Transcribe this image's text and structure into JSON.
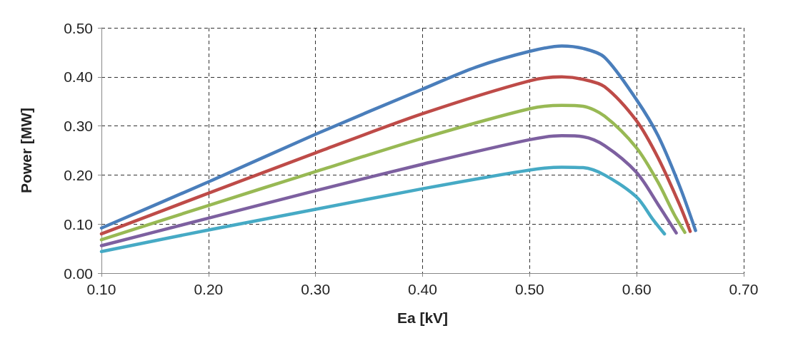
{
  "chart_data": {
    "type": "line",
    "xlabel": "Ea [kV]",
    "ylabel": "Power [MW]",
    "xlim": [
      0.1,
      0.7
    ],
    "xticks": [
      {
        "value": 0.1,
        "label": "0.10"
      },
      {
        "value": 0.2,
        "label": "0.20"
      },
      {
        "value": 0.3,
        "label": "0.30"
      },
      {
        "value": 0.4,
        "label": "0.40"
      },
      {
        "value": 0.5,
        "label": "0.50"
      },
      {
        "value": 0.6,
        "label": "0.60"
      },
      {
        "value": 0.7,
        "label": "0.70"
      }
    ],
    "ylim": [
      0,
      0.5
    ],
    "yticks": [
      {
        "value": 0,
        "label": "0.00"
      },
      {
        "value": 0.1,
        "label": "0.10"
      },
      {
        "value": 0.2,
        "label": "0.20"
      },
      {
        "value": 0.3,
        "label": "0.30"
      },
      {
        "value": 0.4,
        "label": "0.40"
      },
      {
        "value": 0.5,
        "label": "0.50"
      }
    ],
    "grid": true,
    "marker": "none",
    "line_style": "solid",
    "series": [
      {
        "color": "#4a7ebb",
        "x": [
          0.1,
          0.2,
          0.3,
          0.4,
          0.45,
          0.5,
          0.53,
          0.55,
          0.57,
          0.6,
          0.62,
          0.64,
          0.655
        ],
        "values": [
          0.092,
          0.186,
          0.283,
          0.375,
          0.42,
          0.452,
          0.463,
          0.458,
          0.44,
          0.353,
          0.28,
          0.178,
          0.087
        ]
      },
      {
        "color": "#be4b48",
        "x": [
          0.1,
          0.2,
          0.3,
          0.4,
          0.5,
          0.53,
          0.55,
          0.57,
          0.6,
          0.62,
          0.64,
          0.65
        ],
        "values": [
          0.08,
          0.163,
          0.245,
          0.325,
          0.392,
          0.4,
          0.395,
          0.38,
          0.31,
          0.235,
          0.14,
          0.085
        ]
      },
      {
        "color": "#98b954",
        "x": [
          0.1,
          0.2,
          0.3,
          0.4,
          0.5,
          0.53,
          0.55,
          0.57,
          0.6,
          0.62,
          0.635,
          0.645
        ],
        "values": [
          0.068,
          0.138,
          0.207,
          0.275,
          0.335,
          0.342,
          0.34,
          0.32,
          0.255,
          0.185,
          0.12,
          0.083
        ]
      },
      {
        "color": "#7d60a0",
        "x": [
          0.1,
          0.2,
          0.3,
          0.4,
          0.5,
          0.53,
          0.55,
          0.57,
          0.6,
          0.62,
          0.637
        ],
        "values": [
          0.056,
          0.112,
          0.168,
          0.222,
          0.272,
          0.28,
          0.278,
          0.26,
          0.205,
          0.14,
          0.082
        ]
      },
      {
        "color": "#46aac5",
        "x": [
          0.1,
          0.2,
          0.3,
          0.4,
          0.5,
          0.53,
          0.55,
          0.57,
          0.6,
          0.615,
          0.626
        ],
        "values": [
          0.044,
          0.088,
          0.13,
          0.172,
          0.21,
          0.216,
          0.215,
          0.2,
          0.155,
          0.11,
          0.08
        ]
      }
    ]
  }
}
